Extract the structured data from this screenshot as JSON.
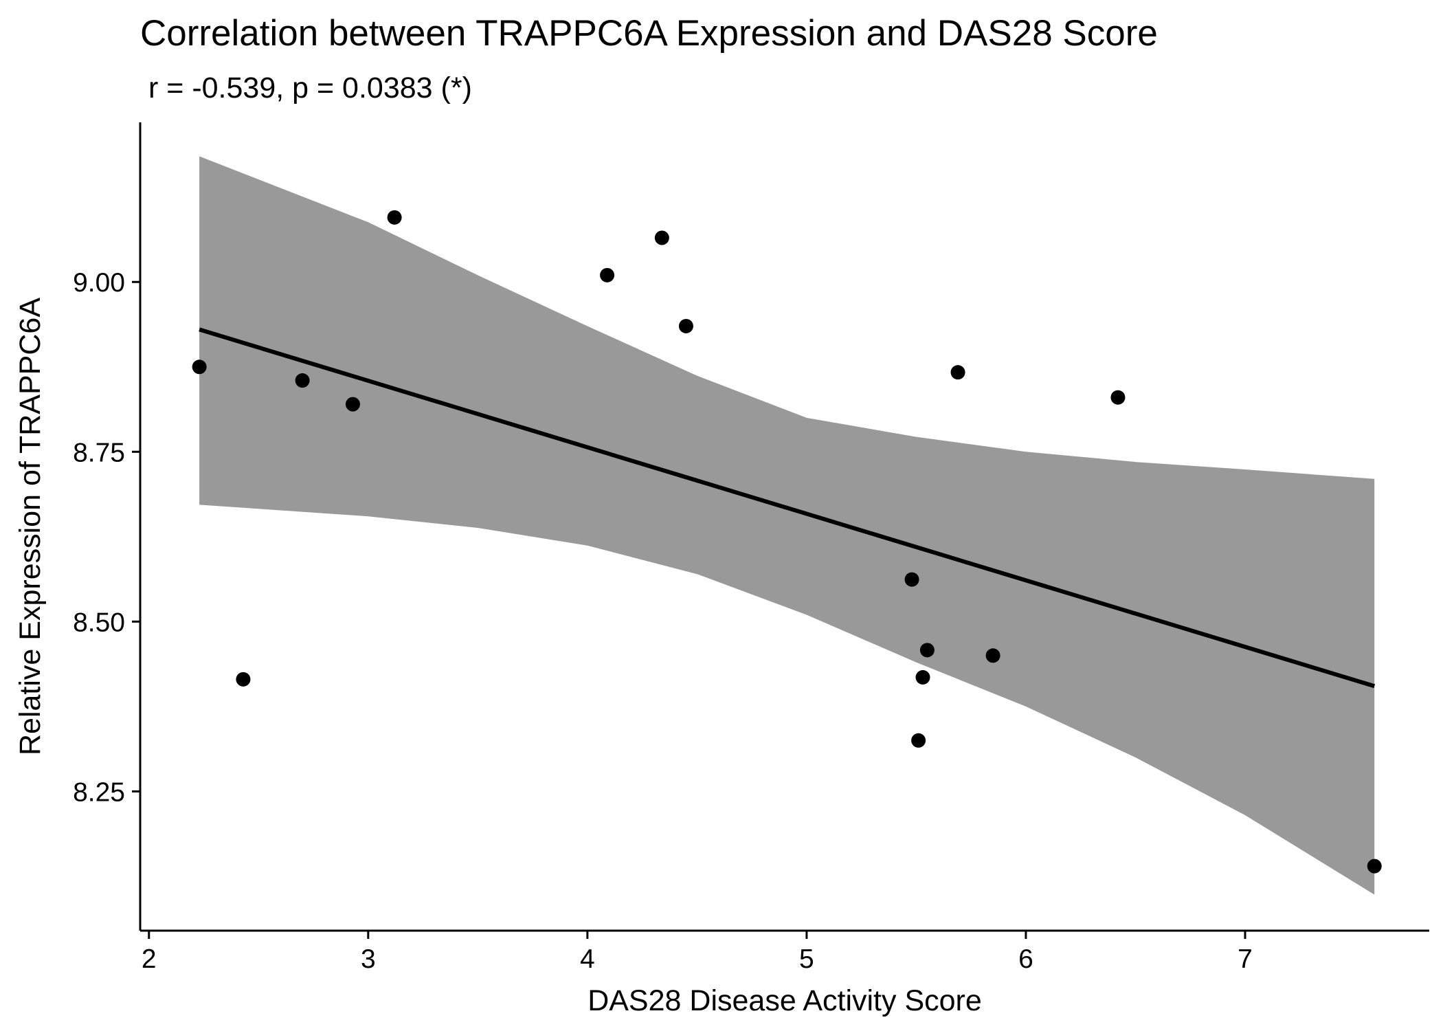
{
  "chart_data": {
    "type": "scatter",
    "title": "Correlation between TRAPPC6A Expression and DAS28 Score",
    "subtitle": "r = -0.539, p = 0.0383 (*)",
    "xlabel": "DAS28 Disease Activity Score",
    "ylabel": "Relative Expression of TRAPPC6A",
    "xlim": [
      1.96,
      7.84
    ],
    "ylim": [
      8.045,
      9.235
    ],
    "x_ticks": [
      2,
      3,
      4,
      5,
      6,
      7
    ],
    "y_ticks": [
      8.25,
      8.5,
      8.75,
      9.0
    ],
    "x_tick_labels": [
      "2",
      "3",
      "4",
      "5",
      "6",
      "7"
    ],
    "y_tick_labels": [
      "8.25",
      "8.50",
      "8.75",
      "9.00"
    ],
    "grid": false,
    "legend": "none",
    "points": [
      {
        "x": 2.23,
        "y": 8.875
      },
      {
        "x": 2.43,
        "y": 8.415
      },
      {
        "x": 2.7,
        "y": 8.855
      },
      {
        "x": 2.93,
        "y": 8.82
      },
      {
        "x": 3.12,
        "y": 9.095
      },
      {
        "x": 4.09,
        "y": 9.01
      },
      {
        "x": 4.34,
        "y": 9.065
      },
      {
        "x": 4.45,
        "y": 8.935
      },
      {
        "x": 5.48,
        "y": 8.562
      },
      {
        "x": 5.51,
        "y": 8.325
      },
      {
        "x": 5.53,
        "y": 8.418
      },
      {
        "x": 5.55,
        "y": 8.458
      },
      {
        "x": 5.69,
        "y": 8.867
      },
      {
        "x": 5.85,
        "y": 8.45
      },
      {
        "x": 6.42,
        "y": 8.83
      },
      {
        "x": 7.59,
        "y": 8.14
      }
    ],
    "fit_line": {
      "x": [
        2.23,
        7.59
      ],
      "y": [
        8.93,
        8.405
      ]
    },
    "confidence_band": {
      "x": [
        2.23,
        3.0,
        3.5,
        4.0,
        4.5,
        5.0,
        5.5,
        6.0,
        6.5,
        7.0,
        7.59
      ],
      "upper": [
        9.185,
        9.088,
        9.01,
        8.935,
        8.862,
        8.8,
        8.772,
        8.75,
        8.735,
        8.724,
        8.71
      ],
      "lower": [
        8.672,
        8.655,
        8.638,
        8.612,
        8.57,
        8.51,
        8.44,
        8.375,
        8.3,
        8.215,
        8.098
      ]
    },
    "colors": {
      "points": "#000000",
      "fit_line": "#000000",
      "band": "#999999",
      "axis": "#000000"
    }
  }
}
